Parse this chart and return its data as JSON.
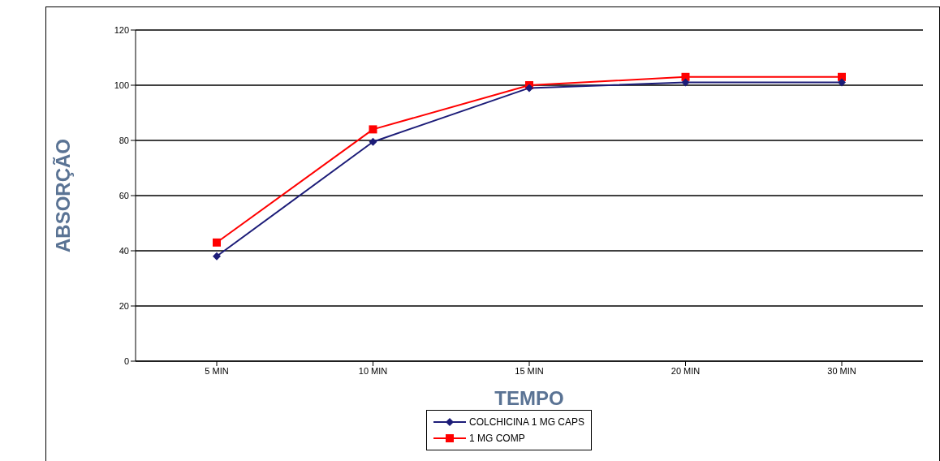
{
  "chart_data": {
    "type": "line",
    "xlabel": "TEMPO",
    "ylabel": "ABSORÇÃO",
    "categories": [
      "5 MIN",
      "10 MIN",
      "15 MIN",
      "20 MIN",
      "30 MIN"
    ],
    "series": [
      {
        "name": "COLCHICINA 1 MG CAPS",
        "color": "#1c1c78",
        "marker": "diamond",
        "values": [
          38,
          79.5,
          99,
          101,
          101
        ]
      },
      {
        "name": "1 MG COMP",
        "color": "#ff0000",
        "marker": "square",
        "values": [
          43,
          84,
          100,
          103,
          103
        ]
      }
    ],
    "ylim": [
      0,
      120
    ],
    "yticks": [
      0,
      20,
      40,
      60,
      80,
      100,
      120
    ],
    "grid": "y",
    "legend": "bottom"
  }
}
